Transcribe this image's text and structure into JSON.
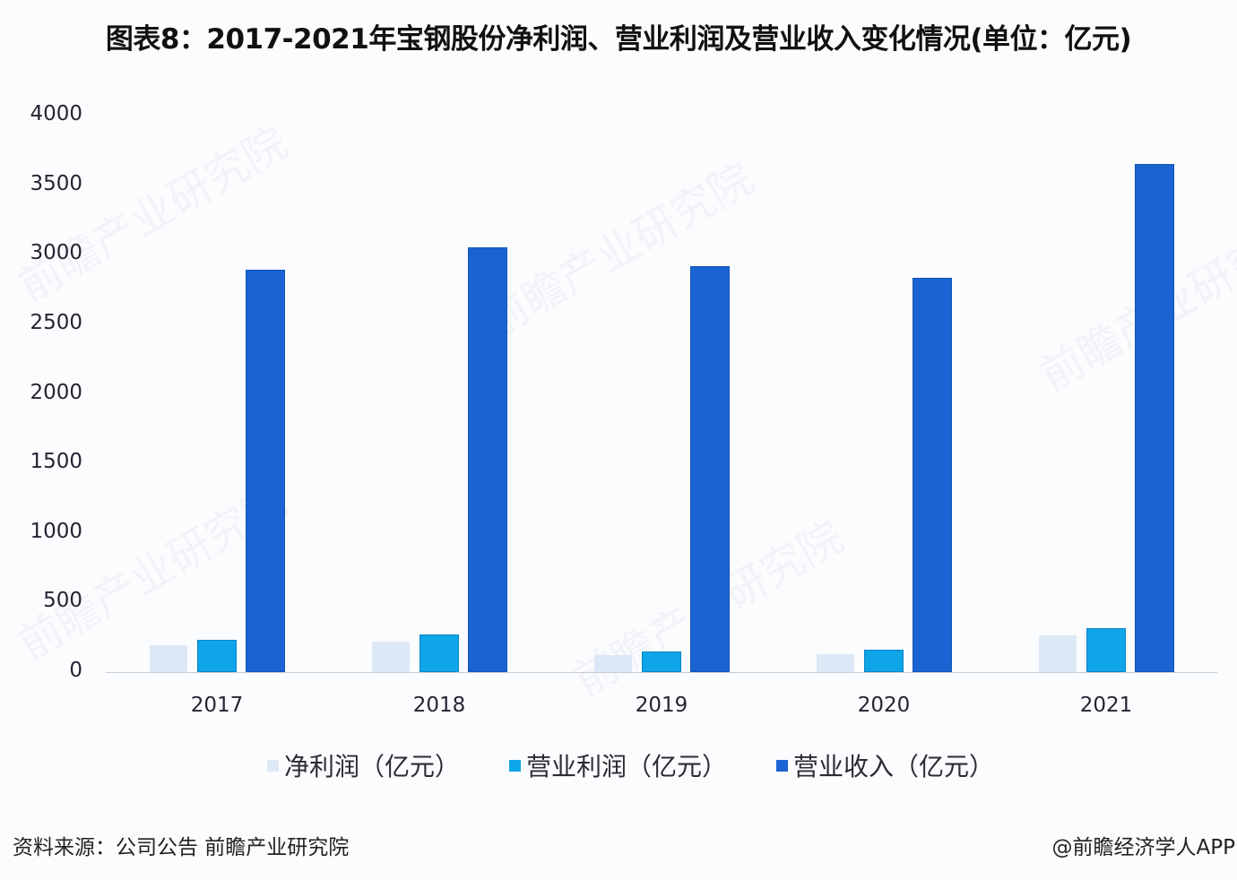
{
  "title": "图表8：2017-2021年宝钢股份净利润、营业利润及营业收入变化情况(单位：亿元)",
  "footer": {
    "source": "资料来源：公司公告 前瞻产业研究院",
    "credit": "@前瞻经济学人APP"
  },
  "watermark": "前瞻产业研究院",
  "colors": {
    "net_profit": "#dde8f7",
    "operating_profit": "#0ea5e9",
    "revenue": "#1a63d2"
  },
  "chart_data": {
    "type": "bar",
    "title": "图表8：2017-2021年宝钢股份净利润、营业利润及营业收入变化情况(单位：亿元)",
    "xlabel": "",
    "ylabel": "",
    "categories": [
      "2017",
      "2018",
      "2019",
      "2020",
      "2021"
    ],
    "series": [
      {
        "name": "净利润（亿元）",
        "values": [
          192,
          216,
          125,
          127,
          266
        ]
      },
      {
        "name": "营业利润（亿元）",
        "values": [
          235,
          273,
          146,
          161,
          317
        ]
      },
      {
        "name": "营业收入（亿元）",
        "values": [
          2895,
          3055,
          2921,
          2837,
          3653
        ]
      }
    ],
    "ylim": [
      0,
      4000
    ],
    "yticks": [
      "0",
      "500",
      "1000",
      "1500",
      "2000",
      "2500",
      "3000",
      "3500",
      "4000"
    ],
    "grid": false,
    "legend_position": "bottom"
  }
}
